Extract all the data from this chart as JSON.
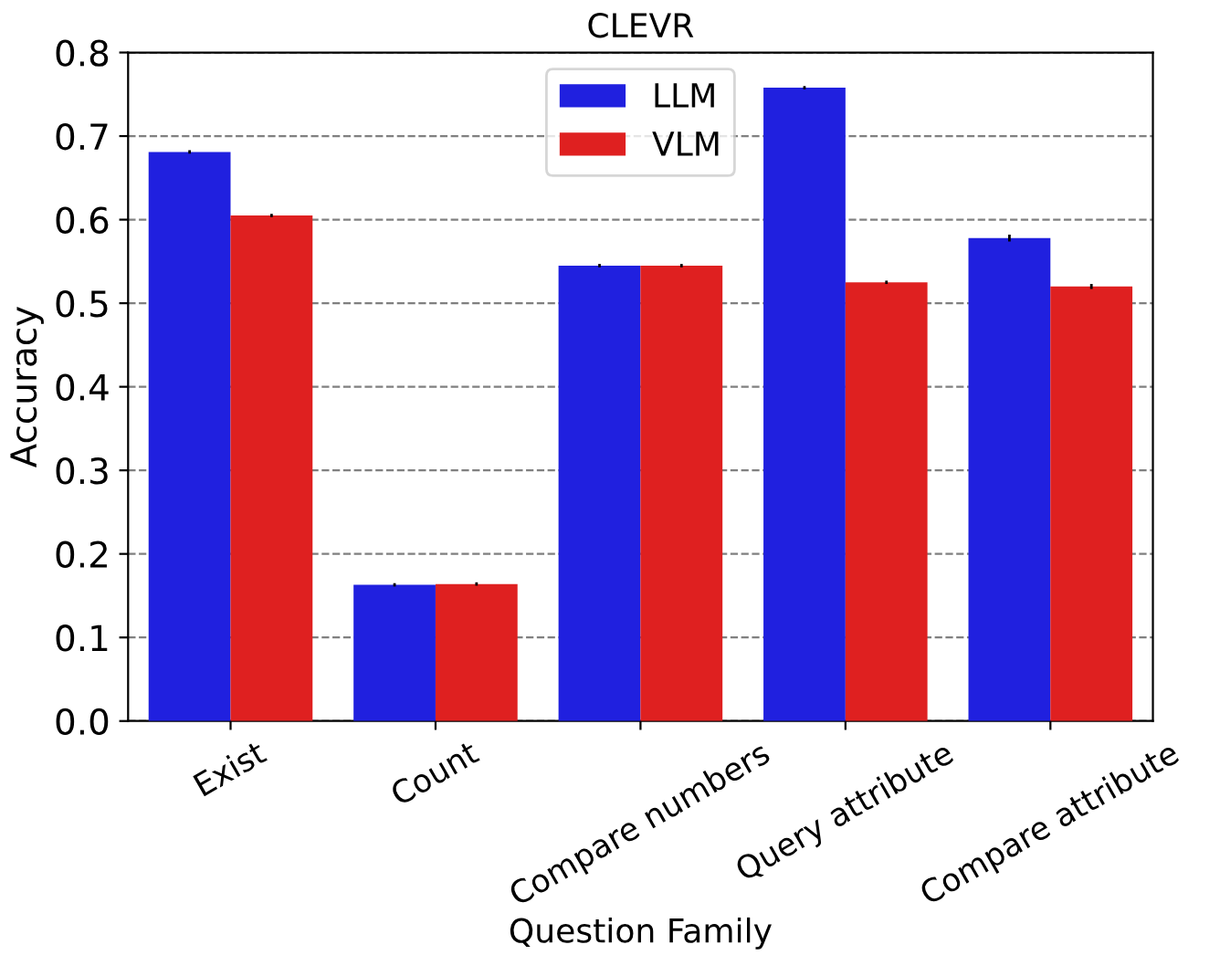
{
  "chart_data": {
    "type": "bar",
    "title": "CLEVR",
    "xlabel": "Question Family",
    "ylabel": "Accuracy",
    "categories": [
      "Exist",
      "Count",
      "Compare numbers",
      "Query attribute",
      "Compare attribute"
    ],
    "series": [
      {
        "name": "LLM",
        "color": "#2020df",
        "values": [
          0.681,
          0.163,
          0.545,
          0.758,
          0.578
        ],
        "errors": [
          0.002,
          0.002,
          0.002,
          0.002,
          0.004
        ]
      },
      {
        "name": "VLM",
        "color": "#df2020",
        "values": [
          0.605,
          0.164,
          0.545,
          0.525,
          0.52
        ],
        "errors": [
          0.002,
          0.002,
          0.002,
          0.002,
          0.003
        ]
      }
    ],
    "ylim": [
      0,
      0.8
    ],
    "yticks": [
      {
        "value": 0,
        "label": "0.0"
      },
      0.1,
      0.2,
      0.3,
      0.4,
      0.5,
      0.6,
      0.7,
      0.8
    ],
    "grid": "y",
    "legend": "top"
  }
}
